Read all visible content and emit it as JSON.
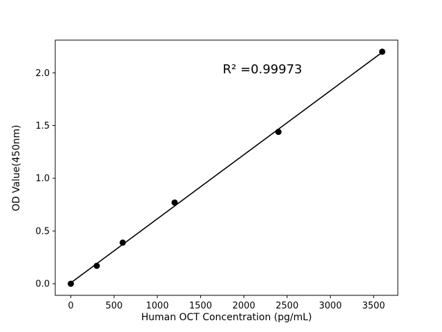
{
  "figure": {
    "background": "#ffffff"
  },
  "chart_data": {
    "type": "scatter",
    "title": "",
    "xlabel": "Human OCT Concentration (pg/mL)",
    "ylabel": "OD Value(450nm)",
    "annotation": "R² =0.99973",
    "x": [
      0,
      300,
      600,
      1200,
      2400,
      3600
    ],
    "y": [
      0.0,
      0.17,
      0.39,
      0.77,
      1.44,
      2.2
    ],
    "xlim": [
      -180,
      3780
    ],
    "ylim": [
      -0.11,
      2.31
    ],
    "xticks": [
      0,
      500,
      1000,
      1500,
      2000,
      2500,
      3000,
      3500
    ],
    "xtick_labels": [
      "0",
      "500",
      "1000",
      "1500",
      "2000",
      "2500",
      "3000",
      "3500"
    ],
    "yticks": [
      0.0,
      0.5,
      1.0,
      1.5,
      2.0
    ],
    "ytick_labels": [
      "0.0",
      "0.5",
      "1.0",
      "1.5",
      "2.0"
    ],
    "grid": false,
    "legend_position": "none",
    "fit": "linear",
    "marker_color": "#000000",
    "line_color": "#000000",
    "frame_color": "#000000"
  }
}
